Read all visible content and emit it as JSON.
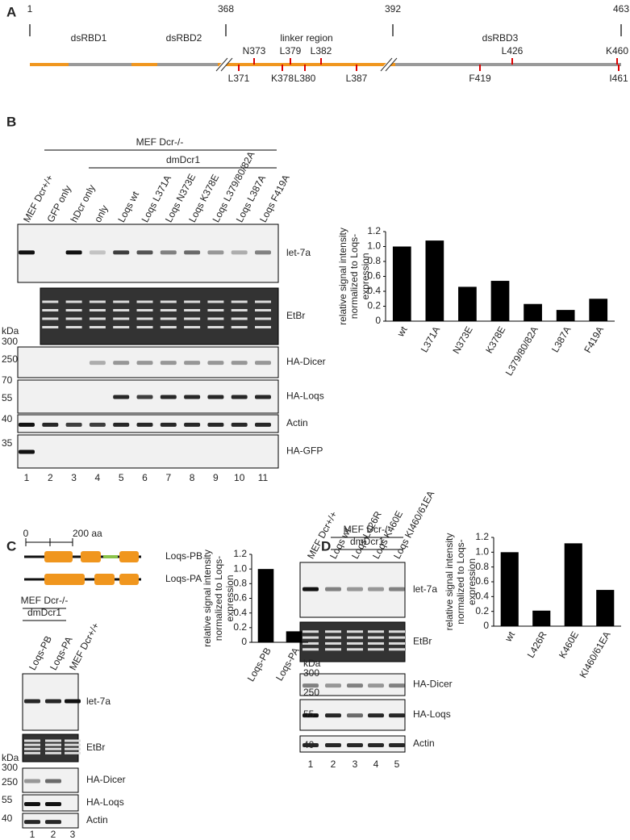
{
  "panel_a": {
    "letter": "A",
    "positions": [
      1,
      368,
      392,
      463
    ],
    "domains": [
      "dsRBD1",
      "dsRBD2",
      "linker region",
      "dsRBD3"
    ],
    "mutations_above": [
      "N373",
      "L379",
      "L382",
      "L426",
      "K460"
    ],
    "mutations_below": [
      "L371",
      "K378",
      "L380",
      "L387",
      "F419",
      "I461"
    ]
  },
  "panel_b": {
    "letter": "B",
    "group": "MEF Dcr-/-",
    "subgroup": "dmDcr1",
    "lanes": [
      "MEF Dcr+/+",
      "GFP only",
      "hDcr only",
      "only",
      "Loqs wt",
      "Loqs L371A",
      "Loqs N373E",
      "Loqs K378E",
      "Loqs L379/80/82A",
      "Loqs L387A",
      "Loqs F419A"
    ],
    "blots": [
      "let-7a",
      "EtBr",
      "HA-Dicer",
      "HA-Loqs",
      "Actin",
      "HA-GFP"
    ],
    "kda_unit": "kDa",
    "kda_markers": [
      300,
      250,
      70,
      55,
      40,
      35
    ],
    "lane_numbers": [
      1,
      2,
      3,
      4,
      5,
      6,
      7,
      8,
      9,
      10,
      11
    ]
  },
  "panel_c": {
    "letter": "C",
    "scale": [
      "0",
      "200 aa"
    ],
    "isoforms": [
      "Loqs-PB",
      "Loqs-PA"
    ],
    "group": "MEF Dcr-/-",
    "subgroup": "dmDcr1",
    "lanes": [
      "Loqs-PB",
      "Loqs-PA",
      "MEF Dcr+/+"
    ],
    "blots": [
      "let-7a",
      "EtBr",
      "HA-Dicer",
      "HA-Loqs",
      "Actin"
    ],
    "kda_unit": "kDa",
    "kda_markers": [
      300,
      250,
      55,
      40
    ],
    "lane_numbers": [
      1,
      2,
      3
    ]
  },
  "panel_d": {
    "letter": "D",
    "group": "MEF Dcr-/-",
    "subgroup": "dmDcr1",
    "lanes": [
      "MEF Dcr+/+",
      "Loqs wt",
      "Loqs L426R",
      "Loqs K460E",
      "Loqs KI460/61EA"
    ],
    "blots": [
      "let-7a",
      "EtBr",
      "HA-Dicer",
      "HA-Loqs",
      "Actin"
    ],
    "kda_unit": "kDa",
    "kda_markers": [
      300,
      250,
      55,
      40
    ],
    "lane_numbers": [
      1,
      2,
      3,
      4,
      5
    ]
  },
  "chart_data": [
    {
      "type": "bar",
      "ylabel": [
        "relative signal intensity",
        "normalized to Loqs-",
        "expression"
      ],
      "categories": [
        "wt",
        "L371A",
        "N373E",
        "K378E",
        "L379/80/82A",
        "L387A",
        "F419A"
      ],
      "values": [
        1.0,
        1.08,
        0.46,
        0.54,
        0.23,
        0.15,
        0.3
      ],
      "color": "#000000",
      "ylim": [
        0,
        1.2
      ],
      "yticks": [
        0,
        0.2,
        0.4,
        0.6,
        0.8,
        {
          "value": 1,
          "label": "1.0"
        },
        1.2
      ]
    },
    {
      "type": "bar",
      "ylabel": [
        "relative signal intensity",
        "normalized to Loqs-",
        "expression"
      ],
      "categories": [
        "Loqs-PB",
        "Loqs-PA"
      ],
      "values": [
        1.0,
        0.15
      ],
      "color": "#000000",
      "ylim": [
        0,
        1.2
      ],
      "yticks": [
        0,
        0.2,
        0.4,
        0.6,
        0.8,
        {
          "value": 1,
          "label": "1.0"
        },
        1.2
      ]
    },
    {
      "type": "bar",
      "ylabel": [
        "relative signal intensity",
        "normalized to Loqs-",
        "expression"
      ],
      "categories": [
        "wt",
        "L426R",
        "K460E",
        "KI460/61EA"
      ],
      "values": [
        1.0,
        0.21,
        1.12,
        0.49
      ],
      "color": "#000000",
      "ylim": [
        0,
        1.2
      ],
      "yticks": [
        0,
        0.2,
        0.4,
        0.6,
        0.8,
        {
          "value": 1,
          "label": "1.0"
        },
        1.2
      ]
    }
  ]
}
